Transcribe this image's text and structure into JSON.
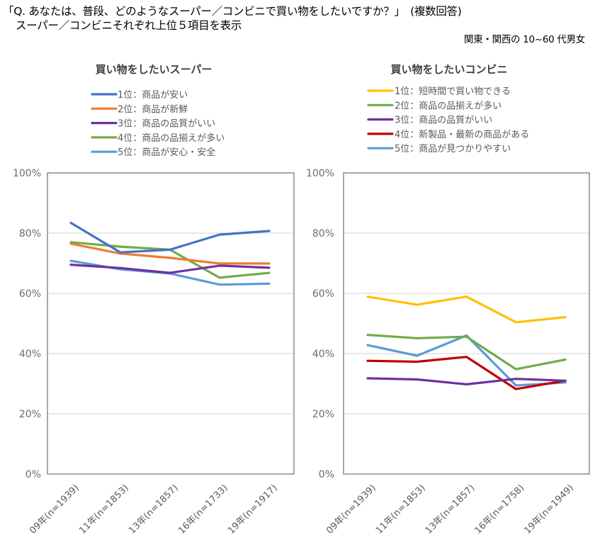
{
  "header": {
    "question": "「Q. あなたは、普段、どのようなスーパー／コンビニで買い物をしたいですか？」　(複数回答)",
    "subtitle": "スーパー／コンビニそれぞれ上位５項目を表示",
    "region": "関東・関西の 10~60 代男女"
  },
  "chart_data": [
    {
      "type": "line",
      "title": "買い物をしたいスーパー",
      "categories": [
        "09年(n=1939)",
        "11年(n=1853)",
        "13年(n=1857)",
        "16年(n=1733)",
        "19年(n=1917)"
      ],
      "ylim": [
        0,
        100
      ],
      "yticks": [
        "0%",
        "20%",
        "40%",
        "60%",
        "80%",
        "100%"
      ],
      "grid": true,
      "legend": "top",
      "series": [
        {
          "name": "1位：商品が安い",
          "color": "#4472C4",
          "values": [
            83.4,
            73.6,
            74.5,
            79.5,
            80.7
          ]
        },
        {
          "name": "2位：商品が新鮮",
          "color": "#ED7D31",
          "values": [
            76.5,
            73.2,
            71.8,
            69.9,
            69.9
          ]
        },
        {
          "name": "3位：商品の品質がいい",
          "color": "#7030A0",
          "values": [
            69.5,
            68.4,
            66.8,
            69.2,
            68.5
          ]
        },
        {
          "name": "4位：商品の品揃えが多い",
          "color": "#70AD47",
          "values": [
            77.0,
            75.5,
            74.5,
            65.2,
            66.8
          ]
        },
        {
          "name": "5位：商品が安心・安全",
          "color": "#5B9BD5",
          "values": [
            70.8,
            68.0,
            66.6,
            62.9,
            63.2
          ]
        }
      ]
    },
    {
      "type": "line",
      "title": "買い物をしたいコンビニ",
      "categories": [
        "09年(n=1939)",
        "11年(n=1853)",
        "13年(n=1857)",
        "16年(n=1758)",
        "19年(n=1949)"
      ],
      "ylim": [
        0,
        100
      ],
      "yticks": [
        "0%",
        "20%",
        "40%",
        "60%",
        "80%",
        "100%"
      ],
      "grid": true,
      "legend": "top",
      "series": [
        {
          "name": "1位：短時間で買い物できる",
          "color": "#FFC000",
          "values": [
            58.9,
            56.2,
            58.9,
            50.4,
            52.1
          ]
        },
        {
          "name": "2位：商品の品揃えが多い",
          "color": "#70AD47",
          "values": [
            46.2,
            45.1,
            45.6,
            34.8,
            38.0
          ]
        },
        {
          "name": "3位：商品の品質がいい",
          "color": "#7030A0",
          "values": [
            31.8,
            31.4,
            29.8,
            31.6,
            31.0
          ]
        },
        {
          "name": "4位：新製品・最新の商品がある",
          "color": "#C00000",
          "values": [
            37.6,
            37.3,
            38.9,
            28.2,
            31.0
          ]
        },
        {
          "name": "5位：商品が見つかりやすい",
          "color": "#5B9BD5",
          "values": [
            42.8,
            39.3,
            46.0,
            29.4,
            30.4
          ]
        }
      ]
    }
  ]
}
